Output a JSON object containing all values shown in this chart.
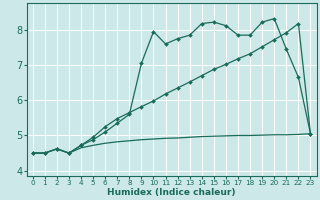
{
  "bg_color": "#cce8e8",
  "grid_color": "#ffffff",
  "line_color": "#1a6b5a",
  "xlabel": "Humidex (Indice chaleur)",
  "xlim": [
    -0.5,
    23.5
  ],
  "ylim": [
    3.85,
    8.75
  ],
  "yticks": [
    4,
    5,
    6,
    7,
    8
  ],
  "xticks": [
    0,
    1,
    2,
    3,
    4,
    5,
    6,
    7,
    8,
    9,
    10,
    11,
    12,
    13,
    14,
    15,
    16,
    17,
    18,
    19,
    20,
    21,
    22,
    23
  ],
  "line_jagged_x": [
    0,
    1,
    2,
    3,
    4,
    5,
    6,
    7,
    8,
    9,
    10,
    11,
    12,
    13,
    14,
    15,
    16,
    17,
    18,
    19,
    20,
    21,
    22,
    23
  ],
  "line_jagged_y": [
    4.5,
    4.5,
    4.62,
    4.5,
    4.72,
    4.88,
    5.1,
    5.35,
    5.6,
    7.05,
    7.95,
    7.6,
    7.75,
    7.85,
    8.18,
    8.22,
    8.12,
    7.85,
    7.85,
    8.22,
    8.32,
    7.45,
    6.65,
    5.05
  ],
  "line_diag_x": [
    0,
    1,
    2,
    3,
    4,
    5,
    6,
    7,
    8,
    9,
    10,
    11,
    12,
    13,
    14,
    15,
    16,
    17,
    18,
    19,
    20,
    21,
    22,
    23
  ],
  "line_diag_y": [
    4.5,
    4.5,
    4.62,
    4.5,
    4.72,
    4.95,
    5.25,
    5.48,
    5.65,
    5.82,
    5.98,
    6.18,
    6.35,
    6.52,
    6.7,
    6.88,
    7.02,
    7.18,
    7.32,
    7.52,
    7.72,
    7.92,
    8.18,
    5.05
  ],
  "line_flat_x": [
    0,
    1,
    2,
    3,
    4,
    5,
    6,
    7,
    8,
    9,
    10,
    11,
    12,
    13,
    14,
    15,
    16,
    17,
    18,
    19,
    20,
    21,
    22,
    23
  ],
  "line_flat_y": [
    4.5,
    4.5,
    4.62,
    4.5,
    4.65,
    4.72,
    4.78,
    4.82,
    4.85,
    4.88,
    4.9,
    4.92,
    4.93,
    4.95,
    4.97,
    4.98,
    4.99,
    5.0,
    5.0,
    5.01,
    5.02,
    5.02,
    5.03,
    5.05
  ]
}
